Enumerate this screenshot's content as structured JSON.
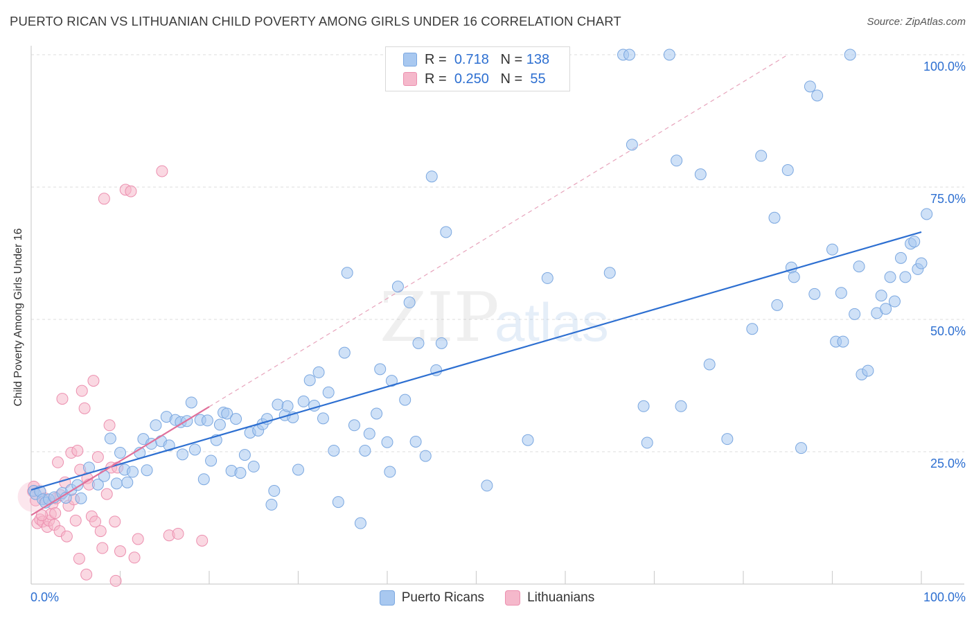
{
  "chart_data": {
    "type": "scatter",
    "title": "PUERTO RICAN VS LITHUANIAN CHILD POVERTY AMONG GIRLS UNDER 16 CORRELATION CHART",
    "source": "Source: ZipAtlas.com",
    "xlabel": "",
    "ylabel": "Child Poverty Among Girls Under 16",
    "xlim": [
      0,
      100
    ],
    "ylim": [
      0,
      100
    ],
    "x_tick_labels": {
      "left": "0.0%",
      "right": "100.0%"
    },
    "y_ticks": [
      {
        "value": 100,
        "label": "100.0%"
      },
      {
        "value": 75,
        "label": "75.0%"
      },
      {
        "value": 50,
        "label": "50.0%"
      },
      {
        "value": 25,
        "label": "25.0%"
      }
    ],
    "watermark": {
      "zip": "ZIP",
      "atlas": "atlas"
    },
    "legend_stats": [
      {
        "r_label": "R =",
        "r_value": "0.718",
        "n_label": "N =",
        "n_value": "138"
      },
      {
        "r_label": "R =",
        "r_value": "0.250",
        "n_label": "N =",
        "n_value": " 55"
      }
    ],
    "series": [
      {
        "name": "Puerto Ricans",
        "color": "#a8c8f0",
        "stroke": "#7aa7e0",
        "trend_color": "#2d6fd1",
        "trend": {
          "x0": 0,
          "y0": 17.8,
          "x1": 100,
          "y1": 66.5
        },
        "points": [
          [
            0.3,
            17.6
          ],
          [
            0.5,
            17.0
          ],
          [
            1.0,
            17.5
          ],
          [
            1.3,
            16.0
          ],
          [
            1.6,
            15.4
          ],
          [
            2.0,
            16.0
          ],
          [
            2.6,
            16.4
          ],
          [
            3.5,
            17.2
          ],
          [
            3.9,
            16.3
          ],
          [
            4.5,
            17.8
          ],
          [
            5.2,
            18.7
          ],
          [
            5.6,
            16.2
          ],
          [
            6.5,
            22.0
          ],
          [
            7.5,
            18.8
          ],
          [
            8.2,
            20.4
          ],
          [
            8.9,
            27.5
          ],
          [
            9.6,
            19.0
          ],
          [
            10.0,
            24.8
          ],
          [
            10.5,
            21.6
          ],
          [
            10.8,
            19.2
          ],
          [
            11.4,
            21.2
          ],
          [
            12.2,
            24.8
          ],
          [
            12.6,
            27.4
          ],
          [
            13.0,
            21.5
          ],
          [
            13.5,
            26.5
          ],
          [
            14.0,
            30.0
          ],
          [
            14.6,
            27.0
          ],
          [
            15.2,
            31.6
          ],
          [
            15.5,
            26.2
          ],
          [
            16.2,
            31.0
          ],
          [
            16.8,
            30.6
          ],
          [
            17.0,
            24.5
          ],
          [
            17.5,
            30.8
          ],
          [
            18.0,
            34.3
          ],
          [
            18.4,
            25.4
          ],
          [
            19.0,
            31.0
          ],
          [
            19.4,
            19.8
          ],
          [
            19.8,
            30.9
          ],
          [
            20.2,
            23.3
          ],
          [
            20.8,
            27.2
          ],
          [
            21.2,
            30.1
          ],
          [
            21.6,
            32.4
          ],
          [
            22.0,
            32.2
          ],
          [
            22.5,
            21.4
          ],
          [
            23.0,
            31.2
          ],
          [
            23.5,
            21.0
          ],
          [
            24.0,
            24.4
          ],
          [
            24.6,
            28.6
          ],
          [
            25.0,
            22.2
          ],
          [
            25.5,
            29.0
          ],
          [
            26.0,
            30.2
          ],
          [
            26.5,
            31.2
          ],
          [
            27.0,
            15.0
          ],
          [
            27.3,
            17.6
          ],
          [
            27.7,
            33.9
          ],
          [
            28.5,
            31.9
          ],
          [
            28.8,
            33.6
          ],
          [
            29.4,
            31.5
          ],
          [
            30.0,
            21.6
          ],
          [
            30.6,
            34.5
          ],
          [
            31.3,
            38.5
          ],
          [
            31.8,
            33.7
          ],
          [
            32.3,
            40.0
          ],
          [
            32.8,
            31.3
          ],
          [
            33.4,
            36.2
          ],
          [
            34.0,
            25.2
          ],
          [
            34.5,
            15.5
          ],
          [
            35.2,
            43.7
          ],
          [
            35.5,
            58.8
          ],
          [
            36.3,
            30.0
          ],
          [
            37.0,
            11.5
          ],
          [
            37.5,
            25.2
          ],
          [
            38.0,
            28.4
          ],
          [
            38.8,
            32.2
          ],
          [
            39.2,
            40.6
          ],
          [
            40.0,
            26.8
          ],
          [
            40.3,
            21.2
          ],
          [
            40.5,
            38.4
          ],
          [
            41.2,
            56.2
          ],
          [
            42.0,
            34.8
          ],
          [
            42.5,
            53.2
          ],
          [
            43.2,
            26.9
          ],
          [
            43.5,
            45.5
          ],
          [
            44.3,
            24.2
          ],
          [
            45.0,
            77.0
          ],
          [
            45.5,
            40.4
          ],
          [
            46.1,
            45.5
          ],
          [
            46.6,
            66.5
          ],
          [
            51.2,
            18.6
          ],
          [
            55.8,
            27.2
          ],
          [
            58.0,
            57.8
          ],
          [
            65.0,
            58.8
          ],
          [
            66.5,
            100.0
          ],
          [
            67.2,
            100.0
          ],
          [
            67.5,
            83.0
          ],
          [
            68.8,
            33.6
          ],
          [
            69.2,
            26.7
          ],
          [
            71.7,
            100.0
          ],
          [
            72.5,
            80.0
          ],
          [
            73.0,
            33.6
          ],
          [
            75.2,
            77.4
          ],
          [
            76.2,
            41.5
          ],
          [
            78.2,
            27.4
          ],
          [
            81.0,
            48.2
          ],
          [
            82.0,
            80.9
          ],
          [
            83.5,
            69.2
          ],
          [
            83.8,
            52.7
          ],
          [
            85.0,
            78.2
          ],
          [
            85.4,
            59.8
          ],
          [
            85.7,
            58.0
          ],
          [
            86.5,
            25.7
          ],
          [
            87.5,
            94.0
          ],
          [
            88.0,
            54.8
          ],
          [
            88.3,
            92.3
          ],
          [
            90.0,
            63.2
          ],
          [
            90.4,
            45.8
          ],
          [
            91.0,
            55.0
          ],
          [
            91.2,
            45.8
          ],
          [
            92.0,
            100.0
          ],
          [
            92.5,
            51.0
          ],
          [
            93.0,
            60.0
          ],
          [
            93.3,
            39.6
          ],
          [
            94.0,
            40.3
          ],
          [
            95.0,
            51.2
          ],
          [
            95.5,
            54.5
          ],
          [
            96.0,
            52.0
          ],
          [
            96.5,
            58.0
          ],
          [
            97.0,
            53.4
          ],
          [
            97.7,
            61.6
          ],
          [
            98.2,
            58.0
          ],
          [
            98.8,
            64.3
          ],
          [
            99.2,
            64.7
          ],
          [
            99.6,
            59.5
          ],
          [
            100.0,
            60.6
          ],
          [
            100.6,
            69.9
          ]
        ]
      },
      {
        "name": "Lithuanians",
        "color": "#f5b8cb",
        "stroke": "#ec8faf",
        "trend_color": "#e0709a",
        "trend": {
          "x0": 0,
          "y0": 13.0,
          "x1": 20,
          "y1": 33.5
        },
        "dashed_extension": {
          "x0": 20,
          "y0": 33.5,
          "x1": 85,
          "y1": 100
        },
        "points": [
          [
            0.2,
            17.5
          ],
          [
            0.5,
            15.8
          ],
          [
            0.7,
            11.5
          ],
          [
            1.0,
            12.2
          ],
          [
            1.3,
            11.8
          ],
          [
            1.5,
            16.2
          ],
          [
            1.8,
            10.8
          ],
          [
            2.0,
            12.0
          ],
          [
            2.2,
            13.2
          ],
          [
            2.4,
            15.2
          ],
          [
            2.6,
            11.2
          ],
          [
            2.8,
            16.2
          ],
          [
            3.0,
            23.0
          ],
          [
            3.2,
            10.0
          ],
          [
            3.5,
            35.0
          ],
          [
            3.8,
            19.2
          ],
          [
            4.0,
            9.0
          ],
          [
            4.2,
            14.8
          ],
          [
            4.5,
            24.8
          ],
          [
            4.8,
            16.0
          ],
          [
            5.0,
            12.0
          ],
          [
            5.2,
            25.2
          ],
          [
            5.5,
            21.6
          ],
          [
            5.7,
            36.5
          ],
          [
            6.0,
            33.2
          ],
          [
            6.3,
            20.0
          ],
          [
            6.5,
            18.8
          ],
          [
            6.8,
            12.8
          ],
          [
            7.0,
            38.4
          ],
          [
            7.2,
            11.8
          ],
          [
            7.5,
            24.0
          ],
          [
            7.8,
            10.0
          ],
          [
            8.0,
            6.8
          ],
          [
            8.2,
            72.8
          ],
          [
            8.5,
            17.0
          ],
          [
            8.8,
            30.0
          ],
          [
            9.0,
            22.0
          ],
          [
            9.4,
            11.8
          ],
          [
            9.7,
            22.0
          ],
          [
            10.0,
            6.2
          ],
          [
            10.6,
            74.5
          ],
          [
            11.2,
            74.2
          ],
          [
            11.6,
            5.0
          ],
          [
            12.0,
            8.5
          ],
          [
            14.7,
            78.0
          ],
          [
            15.5,
            9.2
          ],
          [
            16.5,
            9.5
          ],
          [
            19.2,
            8.2
          ],
          [
            6.2,
            1.8
          ],
          [
            9.5,
            0.6
          ],
          [
            5.4,
            4.8
          ],
          [
            1.2,
            13.0
          ],
          [
            2.7,
            13.4
          ],
          [
            3.3,
            16.8
          ],
          [
            0.3,
            18.4
          ]
        ]
      }
    ]
  }
}
